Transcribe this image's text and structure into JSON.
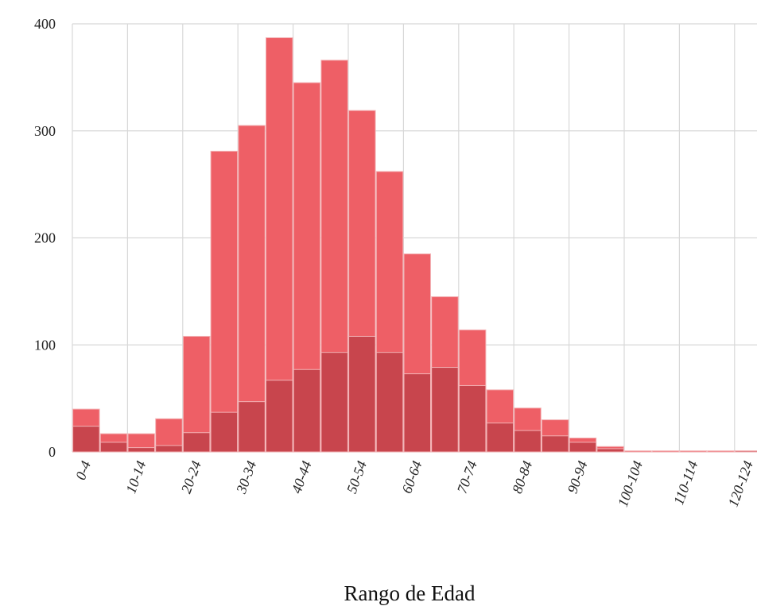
{
  "chart_data": {
    "type": "bar",
    "xlabel": "Rango de Edad",
    "ylabel": "",
    "ylim": [
      0,
      400
    ],
    "yticks": [
      "0",
      "100",
      "200",
      "300",
      "400"
    ],
    "grid": true,
    "tick_labels": [
      "0-4",
      "10-14",
      "20-24",
      "30-34",
      "40-44",
      "50-54",
      "60-64",
      "70-74",
      "80-84",
      "90-94",
      "100-104",
      "110-114",
      "120-124"
    ],
    "categories": [
      "0-4",
      "5-9",
      "10-14",
      "15-19",
      "20-24",
      "25-29",
      "30-34",
      "35-39",
      "40-44",
      "45-49",
      "50-54",
      "55-59",
      "60-64",
      "65-69",
      "70-74",
      "75-79",
      "80-84",
      "85-89",
      "90-94",
      "95-99",
      "100-104",
      "105-109",
      "110-114",
      "115-119",
      "120-124"
    ],
    "series": [
      {
        "color": "#ee5f66",
        "values": [
          40,
          17,
          17,
          31,
          108,
          281,
          305,
          387,
          345,
          366,
          319,
          262,
          185,
          145,
          114,
          58,
          41,
          30,
          13,
          5,
          1,
          1,
          1,
          1,
          1
        ]
      },
      {
        "color": "#c8454d",
        "values": [
          24,
          9,
          4,
          6,
          18,
          37,
          47,
          67,
          77,
          93,
          108,
          93,
          73,
          79,
          62,
          27,
          20,
          15,
          9,
          3,
          0,
          0,
          0,
          0,
          1
        ]
      }
    ]
  }
}
